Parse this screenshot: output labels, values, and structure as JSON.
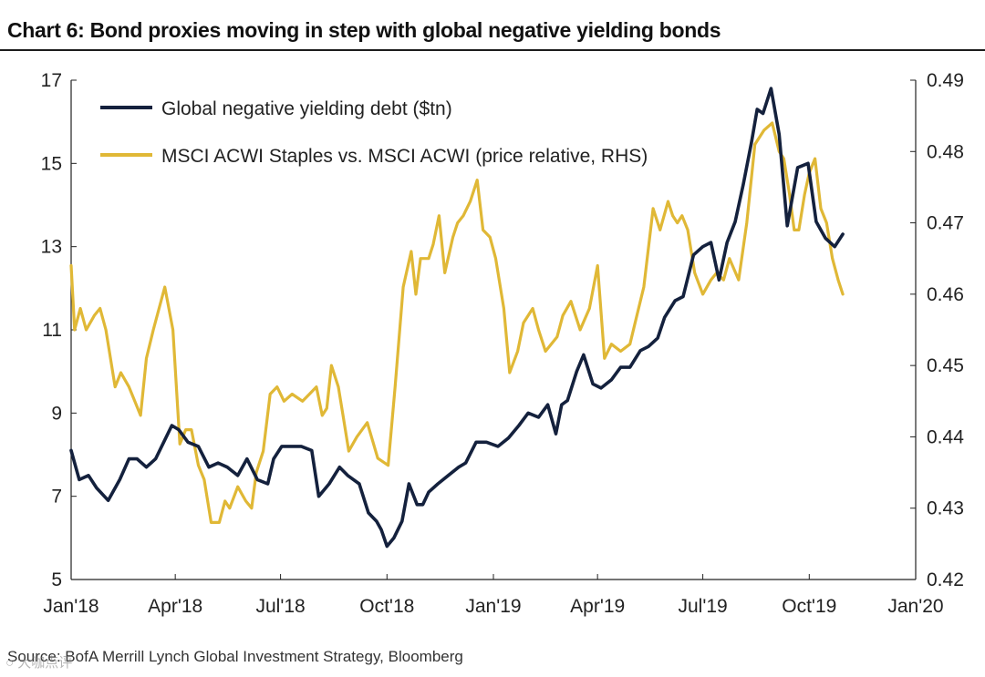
{
  "title": "Chart 6: Bond proxies moving in step with global negative yielding bonds",
  "source": "Source: BofA Merrill Lynch Global Investment Strategy, Bloomberg",
  "watermark": "○ 大咖点评",
  "chart_data": {
    "type": "line",
    "x_axis": {
      "type": "date",
      "range": [
        "2018-01-01",
        "2020-01-01"
      ],
      "tick_labels": [
        "Jan'18",
        "Apr'18",
        "Jul'18",
        "Oct'18",
        "Jan'19",
        "Apr'19",
        "Jul'19",
        "Oct'19",
        "Jan'20"
      ],
      "tick_dates": [
        "2018-01-01",
        "2018-04-01",
        "2018-07-01",
        "2018-10-01",
        "2019-01-01",
        "2019-04-01",
        "2019-07-01",
        "2019-10-01",
        "2020-01-01"
      ]
    },
    "y_left": {
      "ylim": [
        5,
        17
      ],
      "ticks": [
        5,
        7,
        9,
        11,
        13,
        15,
        17
      ]
    },
    "y_right": {
      "ylim": [
        0.42,
        0.49
      ],
      "ticks": [
        0.42,
        0.43,
        0.44,
        0.45,
        0.46,
        0.47,
        0.48,
        0.49
      ]
    },
    "legend": "top-left",
    "series": [
      {
        "name": "Global negative yielding debt ($tn)",
        "axis": "left",
        "color": "#14213d",
        "x": [
          "2018-01-01",
          "2018-01-08",
          "2018-01-16",
          "2018-01-23",
          "2018-02-02",
          "2018-02-12",
          "2018-02-20",
          "2018-02-27",
          "2018-03-07",
          "2018-03-15",
          "2018-03-22",
          "2018-03-29",
          "2018-04-04",
          "2018-04-12",
          "2018-04-21",
          "2018-04-30",
          "2018-05-08",
          "2018-05-16",
          "2018-05-25",
          "2018-06-02",
          "2018-06-11",
          "2018-06-20",
          "2018-06-25",
          "2018-07-02",
          "2018-07-10",
          "2018-07-19",
          "2018-07-28",
          "2018-08-03",
          "2018-08-12",
          "2018-08-21",
          "2018-08-28",
          "2018-09-07",
          "2018-09-15",
          "2018-09-22",
          "2018-09-26",
          "2018-10-01",
          "2018-10-07",
          "2018-10-14",
          "2018-10-20",
          "2018-10-27",
          "2018-11-01",
          "2018-11-06",
          "2018-11-14",
          "2018-11-23",
          "2018-12-02",
          "2018-12-08",
          "2018-12-17",
          "2018-12-26",
          "2019-01-05",
          "2019-01-14",
          "2019-01-23",
          "2019-01-31",
          "2019-02-09",
          "2019-02-17",
          "2019-02-24",
          "2019-03-01",
          "2019-03-06",
          "2019-03-14",
          "2019-03-20",
          "2019-03-28",
          "2019-04-04",
          "2019-04-13",
          "2019-04-21",
          "2019-04-29",
          "2019-05-08",
          "2019-05-15",
          "2019-05-23",
          "2019-05-29",
          "2019-06-07",
          "2019-06-14",
          "2019-06-23",
          "2019-07-01",
          "2019-07-08",
          "2019-07-15",
          "2019-07-22",
          "2019-07-29",
          "2019-08-05",
          "2019-08-12",
          "2019-08-17",
          "2019-08-22",
          "2019-08-29",
          "2019-09-05",
          "2019-09-12",
          "2019-09-21",
          "2019-09-30",
          "2019-10-07",
          "2019-10-15",
          "2019-10-23",
          "2019-10-30"
        ],
        "values": [
          8.1,
          7.4,
          7.5,
          7.2,
          6.9,
          7.4,
          7.9,
          7.9,
          7.7,
          7.9,
          8.3,
          8.7,
          8.6,
          8.3,
          8.2,
          7.7,
          7.8,
          7.7,
          7.5,
          7.9,
          7.4,
          7.3,
          7.9,
          8.2,
          8.2,
          8.2,
          8.1,
          7.0,
          7.3,
          7.7,
          7.5,
          7.3,
          6.6,
          6.4,
          6.2,
          5.8,
          6.0,
          6.4,
          7.3,
          6.8,
          6.8,
          7.1,
          7.3,
          7.5,
          7.7,
          7.8,
          8.3,
          8.3,
          8.2,
          8.4,
          8.7,
          9.0,
          8.9,
          9.2,
          8.5,
          9.2,
          9.3,
          10.0,
          10.4,
          9.7,
          9.6,
          9.8,
          10.1,
          10.1,
          10.5,
          10.6,
          10.8,
          11.3,
          11.7,
          11.8,
          12.8,
          13.0,
          13.1,
          12.2,
          13.1,
          13.6,
          14.5,
          15.5,
          16.3,
          16.2,
          16.8,
          15.7,
          13.5,
          14.9,
          15.0,
          13.6,
          13.2,
          13.0,
          13.3
        ]
      },
      {
        "name": "MSCI ACWI Staples vs. MSCI ACWI (price relative, RHS)",
        "axis": "right",
        "color": "#e0b836",
        "x": [
          "2018-01-01",
          "2018-01-04",
          "2018-01-09",
          "2018-01-14",
          "2018-01-21",
          "2018-01-26",
          "2018-01-31",
          "2018-02-08",
          "2018-02-13",
          "2018-02-20",
          "2018-02-25",
          "2018-03-02",
          "2018-03-07",
          "2018-03-13",
          "2018-03-23",
          "2018-03-30",
          "2018-04-05",
          "2018-04-10",
          "2018-04-15",
          "2018-04-21",
          "2018-04-26",
          "2018-05-02",
          "2018-05-09",
          "2018-05-14",
          "2018-05-18",
          "2018-05-25",
          "2018-06-01",
          "2018-06-06",
          "2018-06-10",
          "2018-06-16",
          "2018-06-22",
          "2018-06-28",
          "2018-07-04",
          "2018-07-11",
          "2018-07-20",
          "2018-07-26",
          "2018-08-01",
          "2018-08-06",
          "2018-08-10",
          "2018-08-14",
          "2018-08-20",
          "2018-08-24",
          "2018-08-29",
          "2018-09-05",
          "2018-09-14",
          "2018-09-23",
          "2018-10-02",
          "2018-10-08",
          "2018-10-15",
          "2018-10-22",
          "2018-10-26",
          "2018-10-30",
          "2018-11-06",
          "2018-11-10",
          "2018-11-15",
          "2018-11-20",
          "2018-11-27",
          "2018-12-01",
          "2018-12-06",
          "2018-12-12",
          "2018-12-18",
          "2018-12-23",
          "2018-12-29",
          "2019-01-03",
          "2019-01-10",
          "2019-01-15",
          "2019-01-22",
          "2019-01-27",
          "2019-02-04",
          "2019-02-09",
          "2019-02-15",
          "2019-02-25",
          "2019-03-02",
          "2019-03-09",
          "2019-03-17",
          "2019-03-25",
          "2019-04-01",
          "2019-04-07",
          "2019-04-13",
          "2019-04-21",
          "2019-04-29",
          "2019-05-05",
          "2019-05-11",
          "2019-05-19",
          "2019-05-25",
          "2019-06-01",
          "2019-06-05",
          "2019-06-09",
          "2019-06-13",
          "2019-06-18",
          "2019-06-24",
          "2019-07-01",
          "2019-07-08",
          "2019-07-13",
          "2019-07-19",
          "2019-07-24",
          "2019-08-01",
          "2019-08-08",
          "2019-08-15",
          "2019-08-23",
          "2019-08-30",
          "2019-09-05",
          "2019-09-09",
          "2019-09-14",
          "2019-09-18",
          "2019-09-22",
          "2019-09-27",
          "2019-10-01",
          "2019-10-06",
          "2019-10-11",
          "2019-10-16",
          "2019-10-21",
          "2019-10-26",
          "2019-10-30"
        ],
        "values": [
          0.464,
          0.455,
          0.458,
          0.455,
          0.457,
          0.458,
          0.455,
          0.447,
          0.449,
          0.447,
          0.445,
          0.443,
          0.451,
          0.455,
          0.461,
          0.455,
          0.439,
          0.441,
          0.441,
          0.436,
          0.434,
          0.428,
          0.428,
          0.431,
          0.43,
          0.433,
          0.431,
          0.43,
          0.435,
          0.438,
          0.446,
          0.447,
          0.445,
          0.446,
          0.445,
          0.446,
          0.447,
          0.443,
          0.444,
          0.45,
          0.447,
          0.443,
          0.438,
          0.44,
          0.442,
          0.437,
          0.436,
          0.447,
          0.461,
          0.466,
          0.46,
          0.465,
          0.465,
          0.467,
          0.471,
          0.463,
          0.468,
          0.47,
          0.471,
          0.473,
          0.476,
          0.469,
          0.468,
          0.465,
          0.458,
          0.449,
          0.452,
          0.456,
          0.458,
          0.455,
          0.452,
          0.454,
          0.457,
          0.459,
          0.455,
          0.458,
          0.464,
          0.451,
          0.453,
          0.452,
          0.453,
          0.457,
          0.461,
          0.472,
          0.469,
          0.473,
          0.471,
          0.47,
          0.471,
          0.469,
          0.463,
          0.46,
          0.462,
          0.463,
          0.462,
          0.465,
          0.462,
          0.47,
          0.481,
          0.483,
          0.484,
          0.48,
          0.479,
          0.474,
          0.469,
          0.469,
          0.474,
          0.477,
          0.479,
          0.472,
          0.47,
          0.465,
          0.462,
          0.46
        ]
      }
    ]
  }
}
